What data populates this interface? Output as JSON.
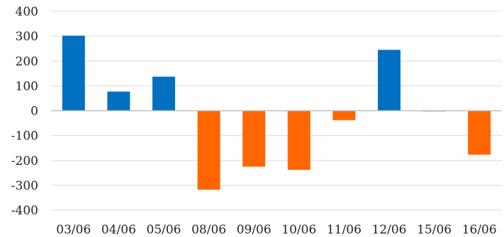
{
  "chart_data": {
    "type": "bar",
    "title": "",
    "xlabel": "",
    "ylabel": "",
    "categories": [
      "03/06",
      "04/06",
      "05/06",
      "08/06",
      "09/06",
      "10/06",
      "11/06",
      "12/06",
      "15/06",
      "16/06"
    ],
    "values": [
      302,
      77,
      137,
      -318,
      -225,
      -238,
      -38,
      245,
      -3,
      -177
    ],
    "ylim": [
      -400,
      400
    ],
    "y_ticks": [
      400,
      300,
      200,
      100,
      0,
      -100,
      -200,
      -300,
      -400
    ],
    "grid": true,
    "colors": {
      "positive": "#0070c0",
      "negative": "#ff6600"
    }
  }
}
